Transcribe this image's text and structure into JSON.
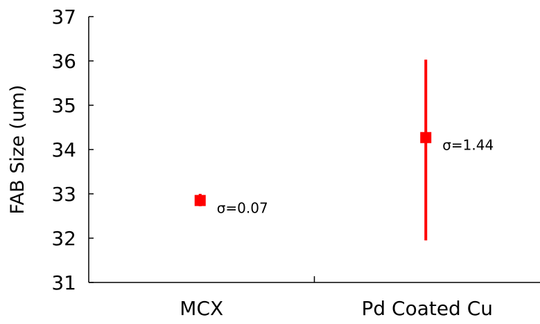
{
  "chart_data": {
    "type": "scatter",
    "title": "",
    "xlabel": "",
    "ylabel": "FAB Size (um)",
    "ylim": [
      31,
      37
    ],
    "yticks": [
      31,
      32,
      33,
      34,
      35,
      36,
      37
    ],
    "categories": [
      "MCX",
      "Pd Coated Cu"
    ],
    "series": [
      {
        "color": "#ff0000",
        "marker": "square",
        "points": [
          {
            "category": "MCX",
            "y": 32.85,
            "err_low": 32.72,
            "err_high": 33.0,
            "label": "σ=0.07"
          },
          {
            "category": "Pd Coated Cu",
            "y": 34.27,
            "err_low": 31.95,
            "err_high": 36.03,
            "label": "σ=1.44"
          }
        ]
      }
    ],
    "grid": false,
    "legend": "none",
    "axis_color": "#000000"
  }
}
